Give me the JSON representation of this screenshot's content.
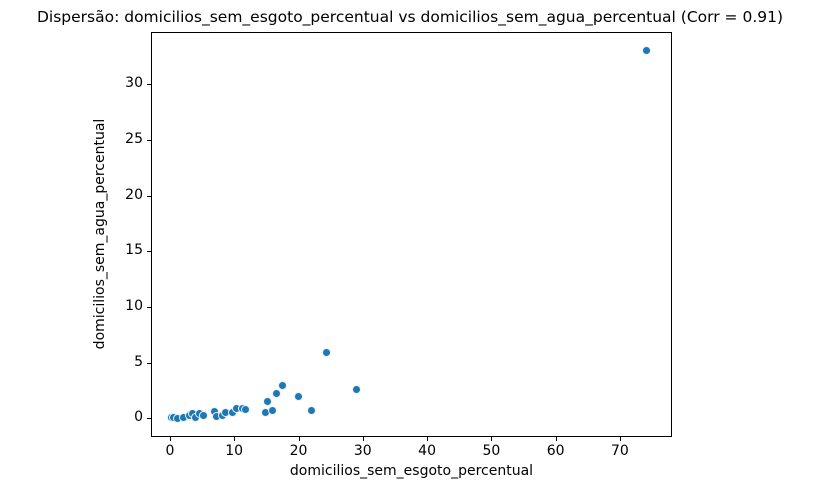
{
  "chart_data": {
    "type": "scatter",
    "title": "Dispersão: domicilios_sem_esgoto_percentual vs domicilios_sem_agua_percentual (Corr = 0.91)",
    "xlabel": "domicilios_sem_esgoto_percentual",
    "ylabel": "domicilios_sem_agua_percentual",
    "correlation": 0.91,
    "xlim": [
      -2.95,
      78.1
    ],
    "ylim": [
      -1.7,
      34.7
    ],
    "xticks": [
      0,
      10,
      20,
      30,
      40,
      50,
      60,
      70
    ],
    "yticks": [
      0,
      5,
      10,
      15,
      20,
      25,
      30
    ],
    "grid": false,
    "legend": "none",
    "marker_color": "#1f77b4",
    "marker_edge_color": "#ffffff",
    "background_color": "#ffffff",
    "points": [
      [
        0.2,
        0.1
      ],
      [
        0.5,
        0.05
      ],
      [
        1.2,
        0.0
      ],
      [
        2.1,
        0.05
      ],
      [
        3.0,
        0.25
      ],
      [
        3.5,
        0.45
      ],
      [
        3.9,
        0.1
      ],
      [
        4.6,
        0.4
      ],
      [
        5.2,
        0.25
      ],
      [
        6.9,
        0.6
      ],
      [
        7.2,
        0.15
      ],
      [
        8.1,
        0.25
      ],
      [
        8.7,
        0.5
      ],
      [
        9.7,
        0.55
      ],
      [
        10.4,
        0.9
      ],
      [
        11.3,
        0.9
      ],
      [
        11.8,
        0.8
      ],
      [
        14.8,
        0.55
      ],
      [
        15.2,
        1.5
      ],
      [
        16.0,
        0.7
      ],
      [
        16.5,
        2.2
      ],
      [
        17.5,
        2.9
      ],
      [
        20.0,
        1.9
      ],
      [
        22.0,
        0.65
      ],
      [
        24.4,
        5.9
      ],
      [
        29.0,
        2.55
      ],
      [
        74.2,
        33.0
      ]
    ]
  }
}
